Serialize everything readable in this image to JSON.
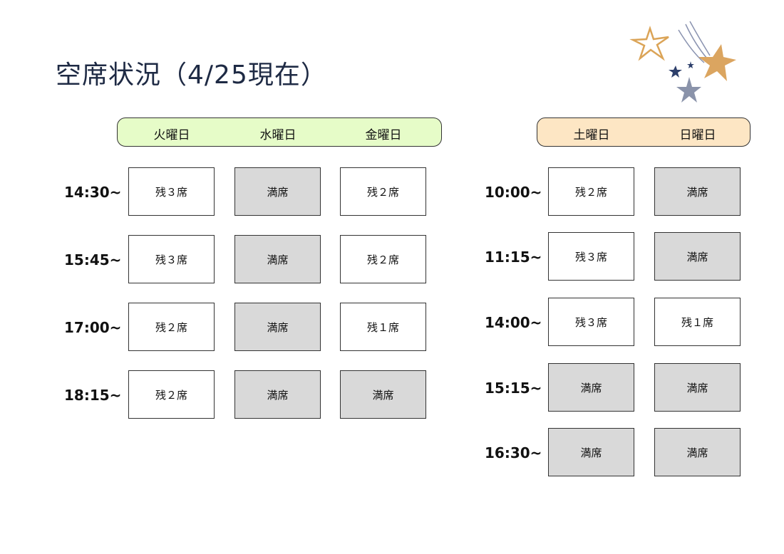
{
  "title": "空席状況（4/25現在）",
  "colors": {
    "weekday_header": "#e6fcc8",
    "weekend_header": "#fde6c4",
    "full_cell": "#d9d9d9"
  },
  "weekday": {
    "days": [
      "火曜日",
      "水曜日",
      "金曜日"
    ],
    "rows": [
      {
        "time": "14:30~",
        "cells": [
          "残３席",
          "満席",
          "残２席"
        ]
      },
      {
        "time": "15:45~",
        "cells": [
          "残３席",
          "満席",
          "残２席"
        ]
      },
      {
        "time": "17:00~",
        "cells": [
          "残２席",
          "満席",
          "残１席"
        ]
      },
      {
        "time": "18:15~",
        "cells": [
          "残２席",
          "満席",
          "満席"
        ]
      }
    ]
  },
  "weekend": {
    "days": [
      "土曜日",
      "日曜日"
    ],
    "rows": [
      {
        "time": "10:00~",
        "cells": [
          "残２席",
          "満席"
        ]
      },
      {
        "time": "11:15~",
        "cells": [
          "残３席",
          "満席"
        ]
      },
      {
        "time": "14:00~",
        "cells": [
          "残３席",
          "残１席"
        ]
      },
      {
        "time": "15:15~",
        "cells": [
          "満席",
          "満席"
        ]
      },
      {
        "time": "16:30~",
        "cells": [
          "満席",
          "満席"
        ]
      }
    ]
  },
  "full_label": "満席"
}
